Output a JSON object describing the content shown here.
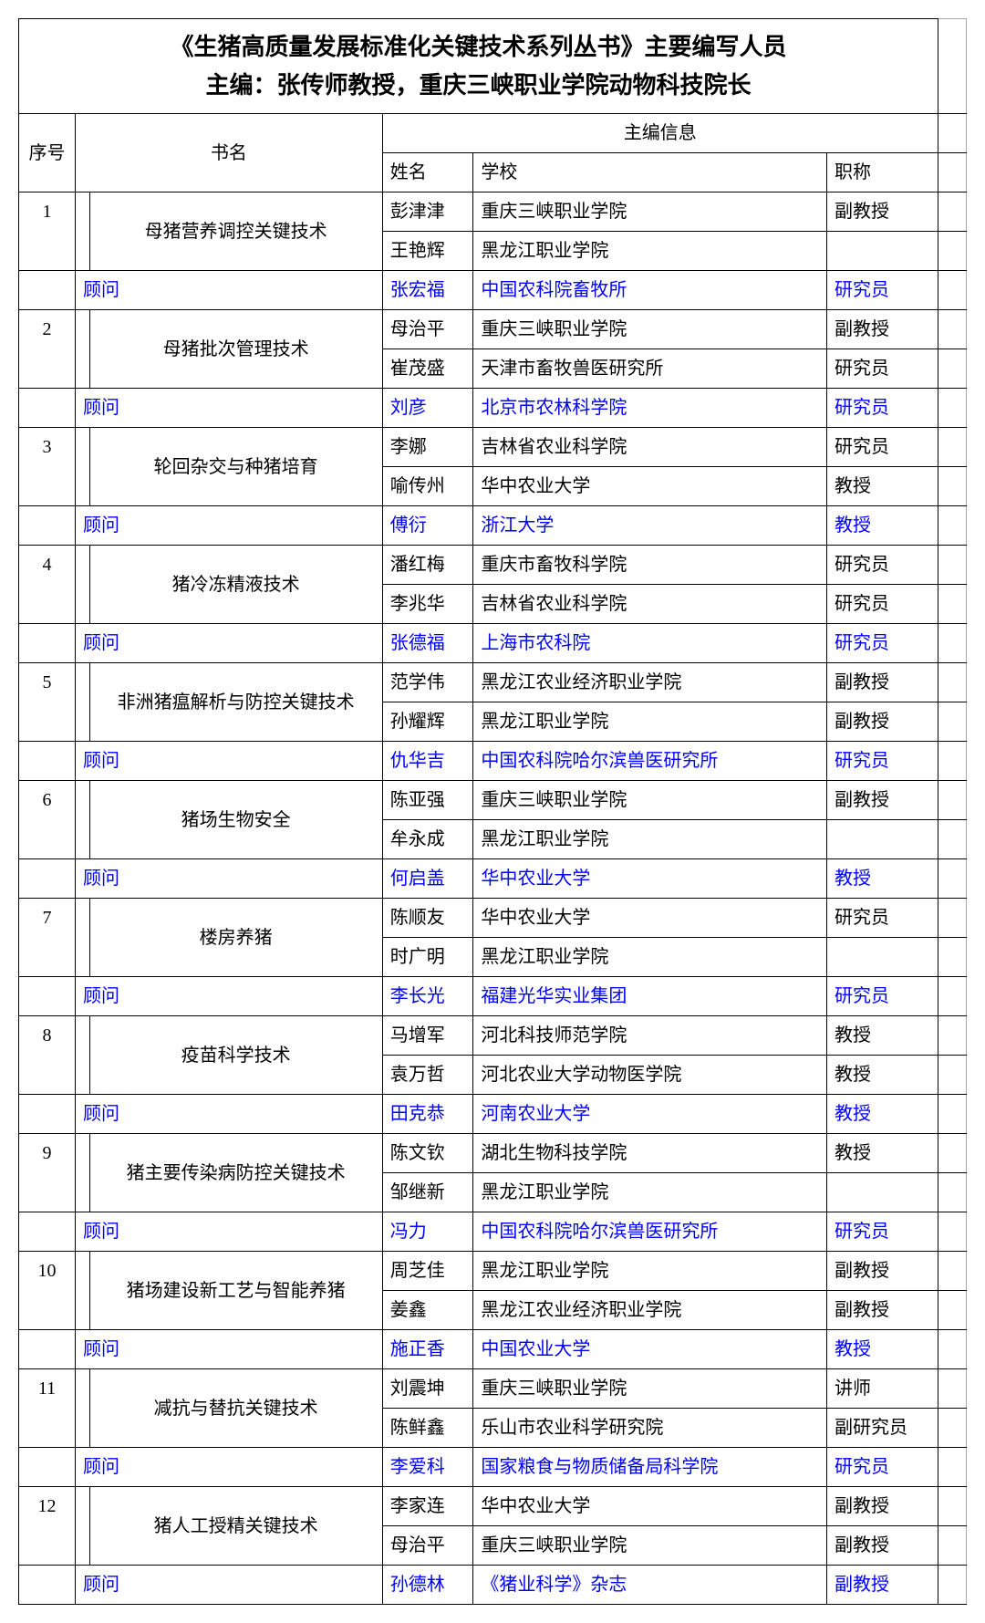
{
  "title_line1": "《生猪高质量发展标准化关键技术系列丛书》主要编写人员",
  "title_line2": "主编：张传师教授，重庆三峡职业学院动物科技院长",
  "headers": {
    "seq": "序号",
    "book": "书名",
    "editor_info": "主编信息",
    "name": "姓名",
    "school": "学校",
    "title": "职称"
  },
  "advisor_label": "顾问",
  "books": [
    {
      "seq": "1",
      "name": "母猪营养调控关键技术",
      "editors": [
        {
          "name": "彭津津",
          "school": "重庆三峡职业学院",
          "title": "副教授"
        },
        {
          "name": "王艳辉",
          "school": "黑龙江职业学院",
          "title": ""
        }
      ],
      "advisor": {
        "name": "张宏福",
        "school": "中国农科院畜牧所",
        "title": "研究员"
      }
    },
    {
      "seq": "2",
      "name": "母猪批次管理技术",
      "editors": [
        {
          "name": "母治平",
          "school": "重庆三峡职业学院",
          "title": "副教授"
        },
        {
          "name": "崔茂盛",
          "school": "天津市畜牧兽医研究所",
          "title": "研究员"
        }
      ],
      "advisor": {
        "name": "刘彦",
        "school": "北京市农林科学院",
        "title": "研究员"
      }
    },
    {
      "seq": "3",
      "name": "轮回杂交与种猪培育",
      "editors": [
        {
          "name": "李娜",
          "school": "吉林省农业科学院",
          "title": "研究员"
        },
        {
          "name": "喻传州",
          "school": "华中农业大学",
          "title": "教授"
        }
      ],
      "advisor": {
        "name": "傅衍",
        "school": "浙江大学",
        "title": "教授"
      }
    },
    {
      "seq": "4",
      "name": "猪冷冻精液技术",
      "editors": [
        {
          "name": "潘红梅",
          "school": "重庆市畜牧科学院",
          "title": "研究员"
        },
        {
          "name": "李兆华",
          "school": "吉林省农业科学院",
          "title": "研究员"
        }
      ],
      "advisor": {
        "name": "张德福",
        "school": "上海市农科院",
        "title": "研究员"
      }
    },
    {
      "seq": "5",
      "name": "非洲猪瘟解析与防控关键技术",
      "editors": [
        {
          "name": "范学伟",
          "school": "黑龙江农业经济职业学院",
          "title": "副教授"
        },
        {
          "name": "孙耀辉",
          "school": "黑龙江职业学院",
          "title": "副教授"
        }
      ],
      "advisor": {
        "name": "仇华吉",
        "school": "中国农科院哈尔滨兽医研究所",
        "title": "研究员"
      }
    },
    {
      "seq": "6",
      "name": "猪场生物安全",
      "editors": [
        {
          "name": "陈亚强",
          "school": "重庆三峡职业学院",
          "title": "副教授"
        },
        {
          "name": "牟永成",
          "school": "黑龙江职业学院",
          "title": ""
        }
      ],
      "advisor": {
        "name": "何启盖",
        "school": "华中农业大学",
        "title": "教授"
      }
    },
    {
      "seq": "7",
      "name": "楼房养猪",
      "editors": [
        {
          "name": "陈顺友",
          "school": "华中农业大学",
          "title": "研究员"
        },
        {
          "name": "时广明",
          "school": "黑龙江职业学院",
          "title": ""
        }
      ],
      "advisor": {
        "name": "李长光",
        "school": "福建光华实业集团",
        "title": "研究员"
      }
    },
    {
      "seq": "8",
      "name": "疫苗科学技术",
      "editors": [
        {
          "name": "马增军",
          "school": "河北科技师范学院",
          "title": "教授"
        },
        {
          "name": "袁万哲",
          "school": "河北农业大学动物医学院",
          "title": "教授"
        }
      ],
      "advisor": {
        "name": "田克恭",
        "school": "河南农业大学",
        "title": "教授"
      }
    },
    {
      "seq": "9",
      "name": "猪主要传染病防控关键技术",
      "editors": [
        {
          "name": "陈文钦",
          "school": "湖北生物科技学院",
          "title": "教授"
        },
        {
          "name": "邹继新",
          "school": "黑龙江职业学院",
          "title": ""
        }
      ],
      "advisor": {
        "name": "冯力",
        "school": "中国农科院哈尔滨兽医研究所",
        "title": "研究员"
      }
    },
    {
      "seq": "10",
      "name": "猪场建设新工艺与智能养猪",
      "editors": [
        {
          "name": "周芝佳",
          "school": "黑龙江职业学院",
          "title": "副教授"
        },
        {
          "name": "姜鑫",
          "school": "黑龙江农业经济职业学院",
          "title": "副教授"
        }
      ],
      "advisor": {
        "name": "施正香",
        "school": "中国农业大学",
        "title": "教授"
      }
    },
    {
      "seq": "11",
      "name": "减抗与替抗关键技术",
      "editors": [
        {
          "name": "刘震坤",
          "school": "重庆三峡职业学院",
          "title": "讲师"
        },
        {
          "name": "陈鲜鑫",
          "school": "乐山市农业科学研究院",
          "title": "副研究员"
        }
      ],
      "advisor": {
        "name": "李爱科",
        "school": "国家粮食与物质储备局科学院",
        "title": "研究员"
      }
    },
    {
      "seq": "12",
      "name": "猪人工授精关键技术",
      "editors": [
        {
          "name": "李家连",
          "school": "华中农业大学",
          "title": "副教授"
        },
        {
          "name": "母治平",
          "school": "重庆三峡职业学院",
          "title": "副教授"
        }
      ],
      "advisor": {
        "name": "孙德林",
        "school": "《猪业科学》杂志",
        "title": "副教授"
      }
    }
  ]
}
